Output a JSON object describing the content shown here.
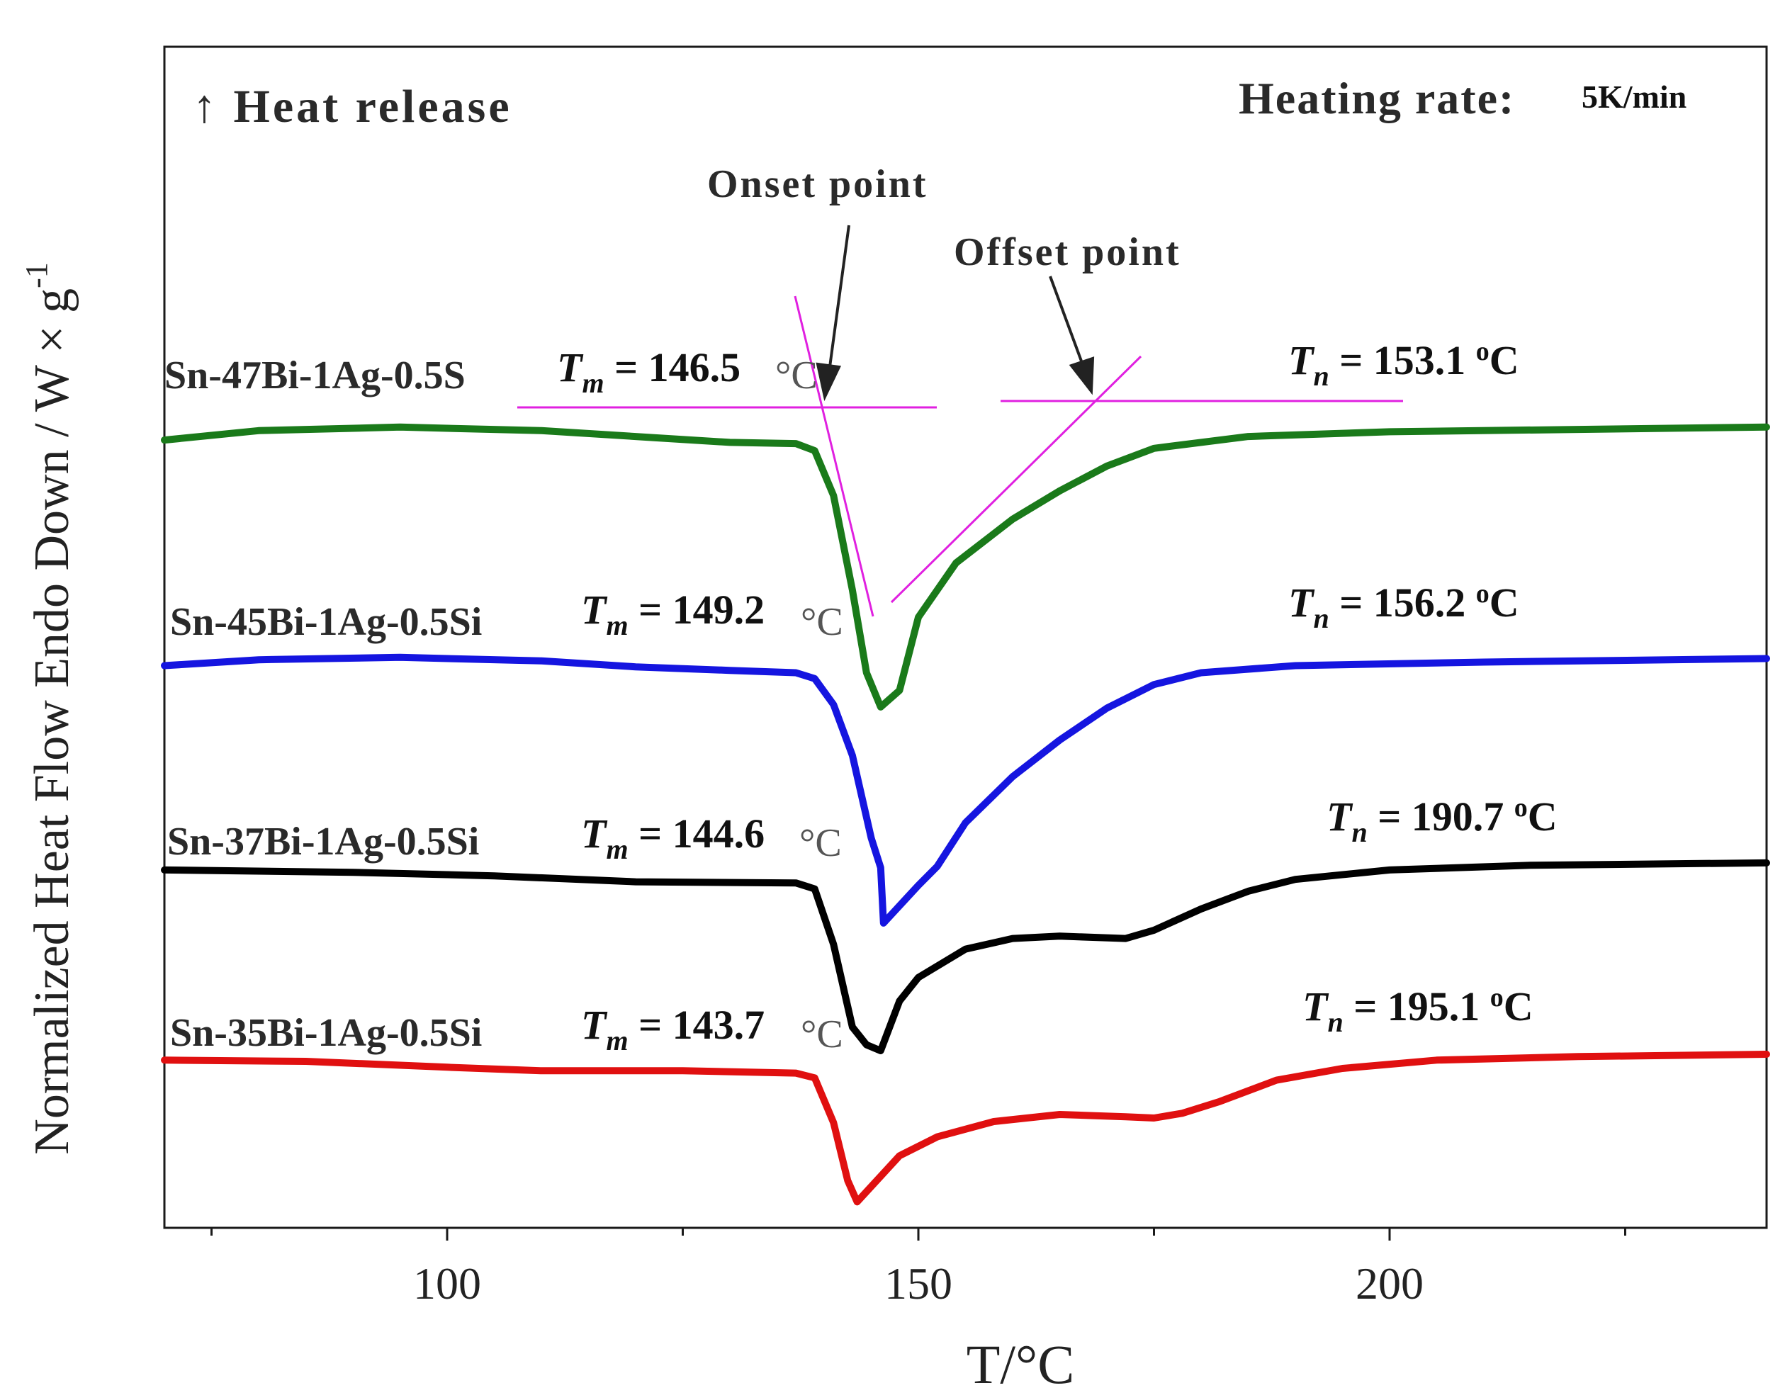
{
  "chart_data": {
    "type": "line",
    "title": "",
    "xlabel": "T/°C",
    "ylabel": "Normalized Heat Flow Endo Down / W × g",
    "ylabel_superscript": "-1",
    "xlim": [
      70,
      240
    ],
    "x_major_ticks": [
      100,
      150,
      200
    ],
    "x_minor_ticks": [
      75,
      125,
      175,
      225
    ],
    "x_tick_labels": [
      "100",
      "150",
      "200"
    ],
    "ylim": [
      0,
      1
    ],
    "y_ticks_shown": false,
    "header_left": "↑ Heat release",
    "header_right_label": "Heating rate:",
    "header_right_value": "5K/min",
    "annotations": {
      "onset_label": "Onset point",
      "offset_label": "Offset point"
    },
    "series": [
      {
        "name": "Sn-47Bi-1Ag-0.5S",
        "color": "#1a7a1a",
        "tm_label": "146.5",
        "tn_label": "153.1",
        "unit_tm": "°C",
        "unit_tn": "C",
        "points": [
          [
            70,
            0.667
          ],
          [
            80,
            0.675
          ],
          [
            95,
            0.678
          ],
          [
            110,
            0.675
          ],
          [
            120,
            0.67
          ],
          [
            130,
            0.665
          ],
          [
            137,
            0.664
          ],
          [
            139,
            0.658
          ],
          [
            141,
            0.62
          ],
          [
            143,
            0.54
          ],
          [
            144.5,
            0.47
          ],
          [
            146,
            0.441
          ],
          [
            148,
            0.455
          ],
          [
            150,
            0.517
          ],
          [
            154,
            0.563
          ],
          [
            160,
            0.6
          ],
          [
            165,
            0.624
          ],
          [
            170,
            0.645
          ],
          [
            175,
            0.66
          ],
          [
            185,
            0.67
          ],
          [
            200,
            0.674
          ],
          [
            220,
            0.676
          ],
          [
            240,
            0.678
          ]
        ]
      },
      {
        "name": "Sn-45Bi-1Ag-0.5Si",
        "color": "#1515e0",
        "tm_label": "149.2",
        "tn_label": "156.2",
        "unit_tm": "°C",
        "unit_tn": "C",
        "points": [
          [
            70,
            0.476
          ],
          [
            80,
            0.481
          ],
          [
            95,
            0.483
          ],
          [
            110,
            0.48
          ],
          [
            120,
            0.475
          ],
          [
            130,
            0.472
          ],
          [
            137,
            0.47
          ],
          [
            139,
            0.465
          ],
          [
            141,
            0.443
          ],
          [
            143,
            0.4
          ],
          [
            145,
            0.33
          ],
          [
            146,
            0.305
          ],
          [
            146.3,
            0.258
          ],
          [
            150,
            0.29
          ],
          [
            152,
            0.306
          ],
          [
            155,
            0.343
          ],
          [
            160,
            0.382
          ],
          [
            165,
            0.413
          ],
          [
            170,
            0.44
          ],
          [
            175,
            0.46
          ],
          [
            180,
            0.47
          ],
          [
            190,
            0.476
          ],
          [
            210,
            0.479
          ],
          [
            240,
            0.482
          ]
        ]
      },
      {
        "name": "Sn-37Bi-1Ag-0.5Si",
        "color": "#000000",
        "tm_label": "144.6",
        "tn_label": "190.7",
        "unit_tm": "°C",
        "unit_tn": "C",
        "points": [
          [
            70,
            0.303
          ],
          [
            90,
            0.301
          ],
          [
            105,
            0.298
          ],
          [
            120,
            0.293
          ],
          [
            137,
            0.292
          ],
          [
            139,
            0.287
          ],
          [
            141,
            0.24
          ],
          [
            143,
            0.17
          ],
          [
            144.5,
            0.155
          ],
          [
            146,
            0.15
          ],
          [
            148,
            0.192
          ],
          [
            150,
            0.212
          ],
          [
            155,
            0.236
          ],
          [
            160,
            0.245
          ],
          [
            165,
            0.247
          ],
          [
            172,
            0.245
          ],
          [
            175,
            0.252
          ],
          [
            180,
            0.27
          ],
          [
            185,
            0.285
          ],
          [
            190,
            0.295
          ],
          [
            200,
            0.303
          ],
          [
            215,
            0.307
          ],
          [
            240,
            0.309
          ]
        ]
      },
      {
        "name": "Sn-35Bi-1Ag-0.5Si",
        "color": "#e01010",
        "tm_label": "143.7",
        "tn_label": "195.1",
        "unit_tm": "°C",
        "unit_tn": "C",
        "points": [
          [
            70,
            0.142
          ],
          [
            85,
            0.141
          ],
          [
            100,
            0.136
          ],
          [
            110,
            0.133
          ],
          [
            125,
            0.133
          ],
          [
            137,
            0.131
          ],
          [
            139,
            0.127
          ],
          [
            141,
            0.089
          ],
          [
            142.5,
            0.04
          ],
          [
            143.5,
            0.022
          ],
          [
            145,
            0.035
          ],
          [
            148,
            0.061
          ],
          [
            152,
            0.077
          ],
          [
            158,
            0.09
          ],
          [
            165,
            0.096
          ],
          [
            172,
            0.094
          ],
          [
            175,
            0.093
          ],
          [
            178,
            0.097
          ],
          [
            182,
            0.107
          ],
          [
            188,
            0.125
          ],
          [
            195,
            0.135
          ],
          [
            205,
            0.142
          ],
          [
            220,
            0.145
          ],
          [
            240,
            0.147
          ]
        ]
      }
    ]
  }
}
